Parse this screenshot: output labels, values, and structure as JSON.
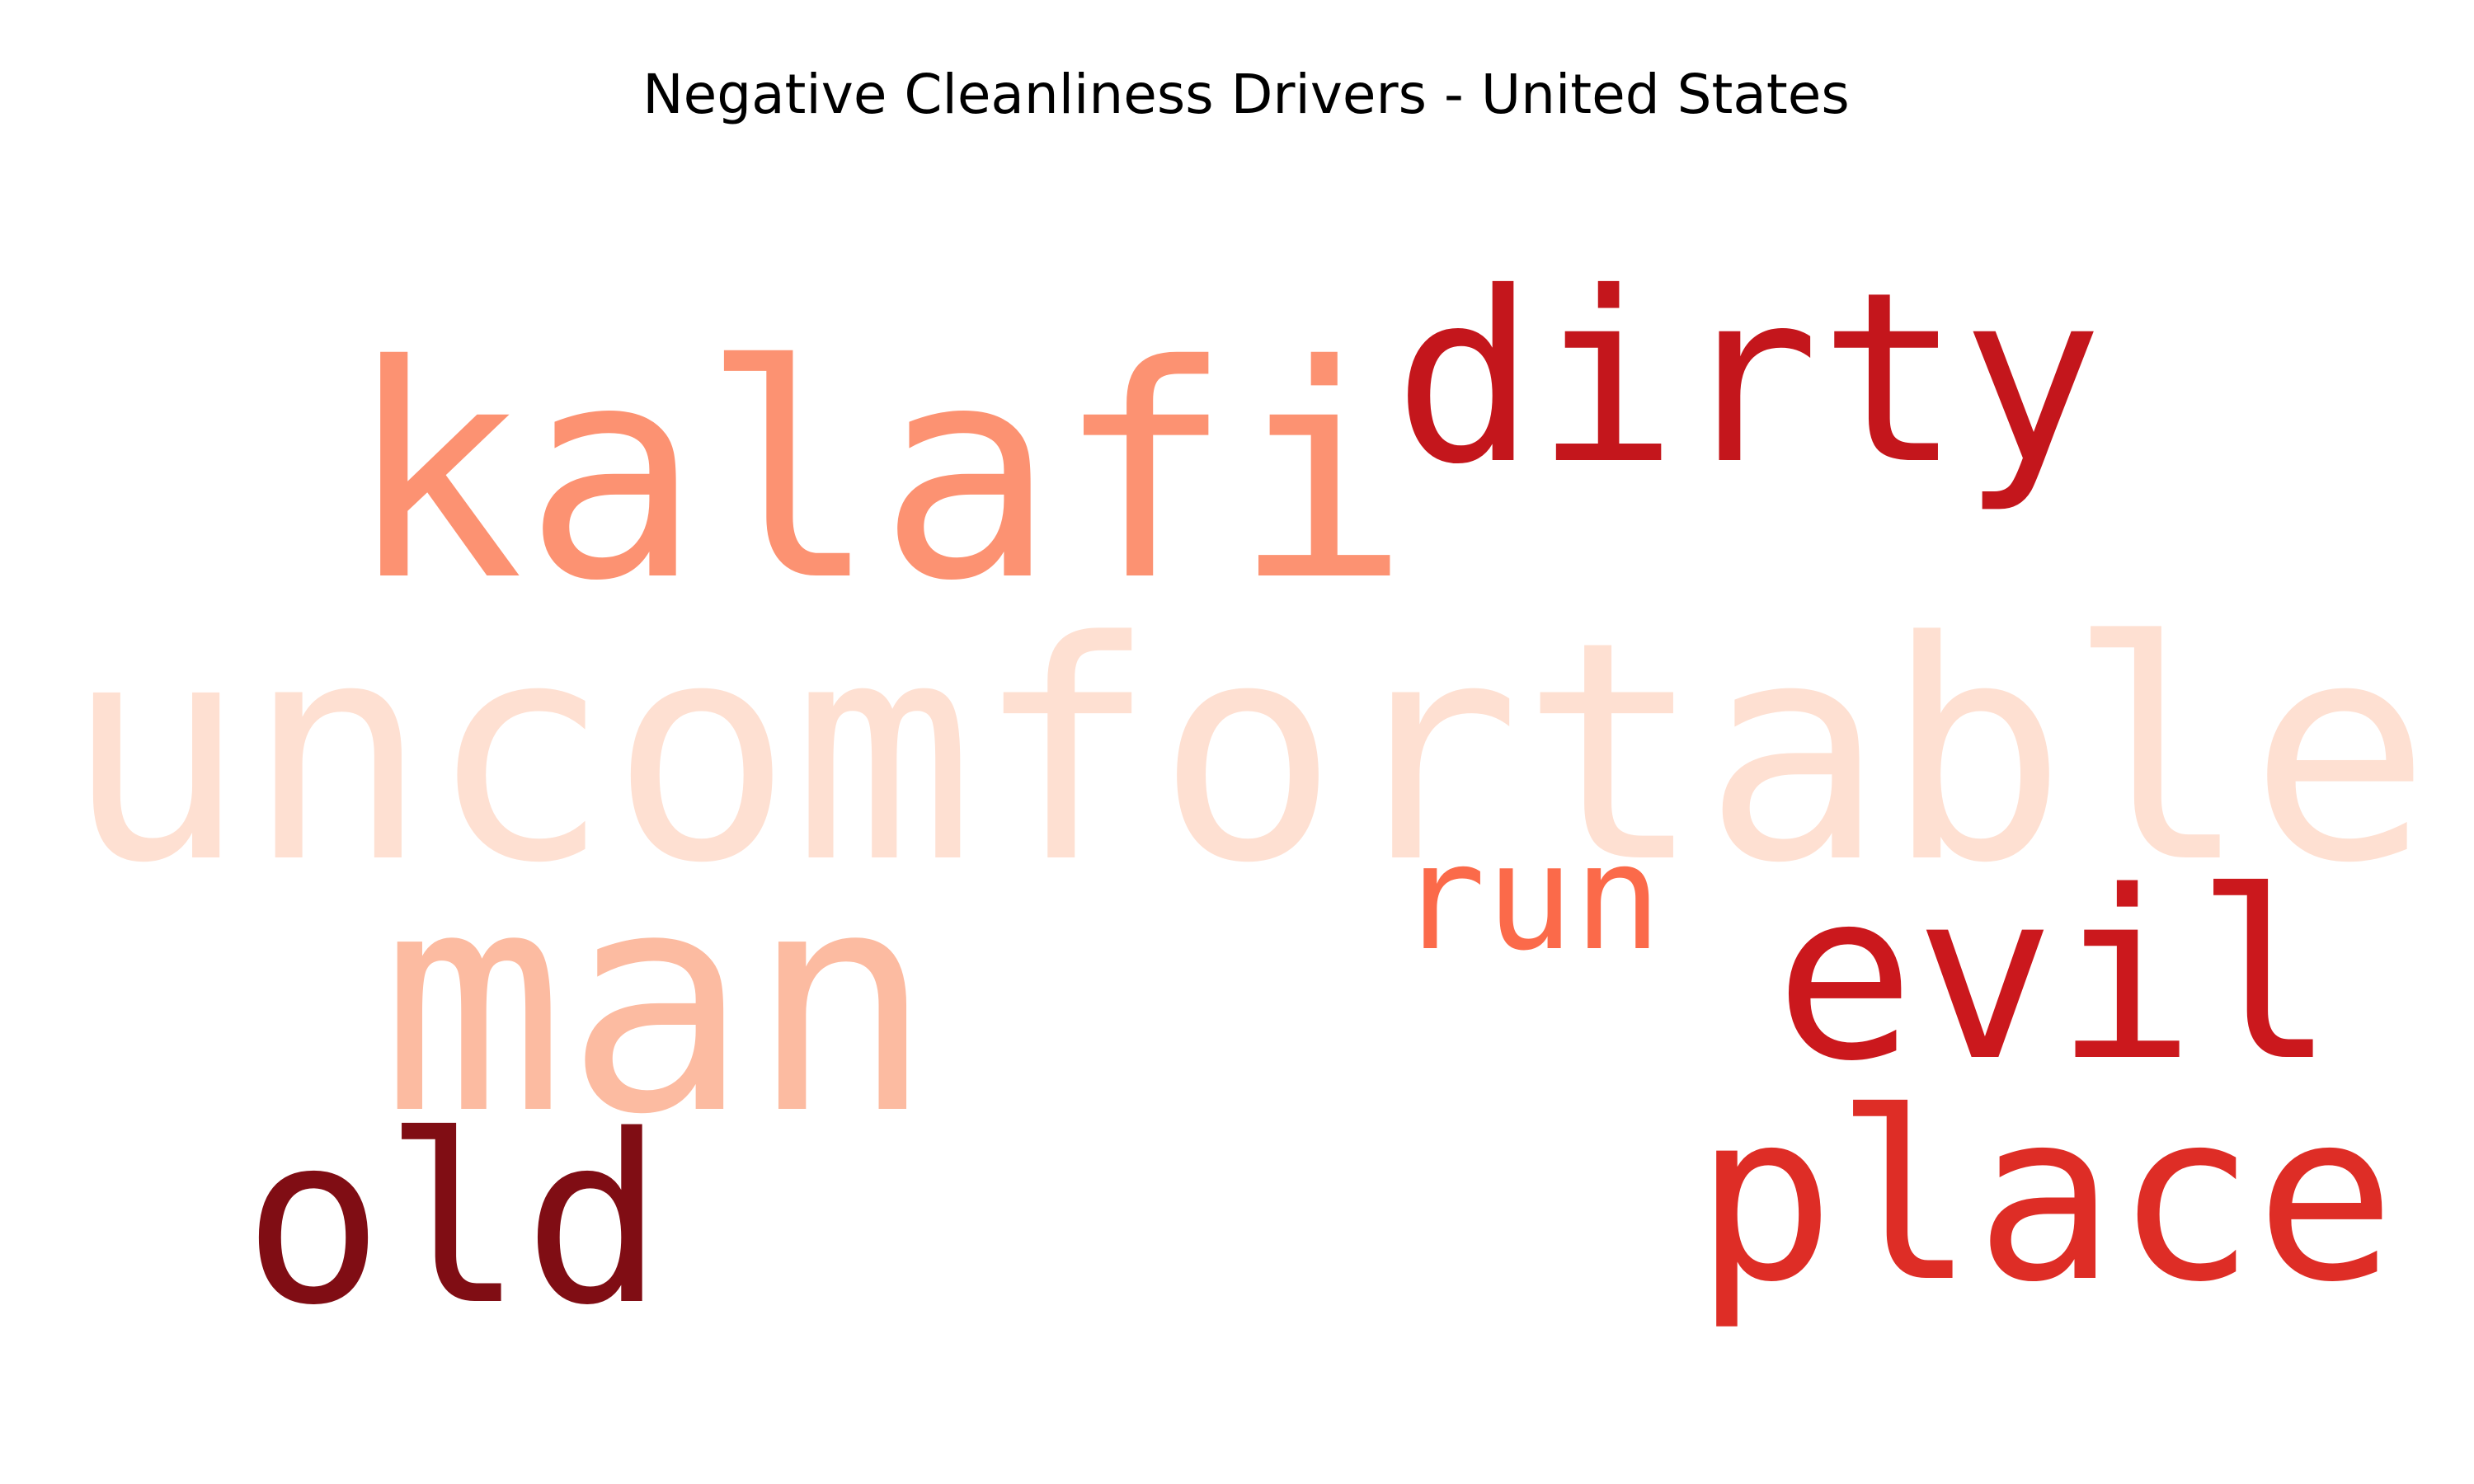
{
  "chart_data": {
    "type": "wordcloud",
    "title": "Negative Cleanliness Drivers - United States",
    "words": [
      {
        "text": "uncomfortable",
        "color": "#fee0d2"
      },
      {
        "text": "kalafi",
        "color": "#fc9272"
      },
      {
        "text": "dirty",
        "color": "#c4161c"
      },
      {
        "text": "man",
        "color": "#fcbba1"
      },
      {
        "text": "run",
        "color": "#fb6a4a"
      },
      {
        "text": "evil",
        "color": "#cb181d"
      },
      {
        "text": "place",
        "color": "#de2d26"
      },
      {
        "text": "old",
        "color": "#800d14"
      }
    ]
  }
}
